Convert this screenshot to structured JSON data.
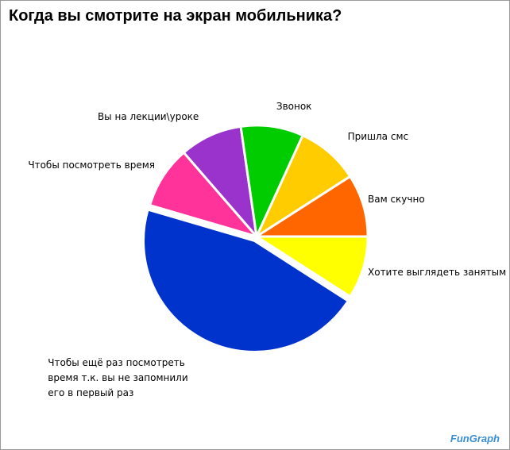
{
  "chart_data": {
    "type": "pie",
    "title": "Когда вы смотрите на экран мобильника?",
    "categories": [
      "Хотите выглядеть занятым",
      "Чтобы ещё раз посмотреть время т.к. вы не запомнили его в первый раз",
      "Чтобы посмотреть время",
      "Вы на лекции\\уроке",
      "Звонок",
      "Пришла смс",
      "Вам скучно"
    ],
    "values": [
      1,
      5,
      1,
      1,
      1,
      1,
      1
    ],
    "colors": [
      "#ffff00",
      "#0033cc",
      "#ff3399",
      "#9933cc",
      "#00cc00",
      "#ffcc00",
      "#ff6600"
    ],
    "watermark": "FunGraph"
  }
}
